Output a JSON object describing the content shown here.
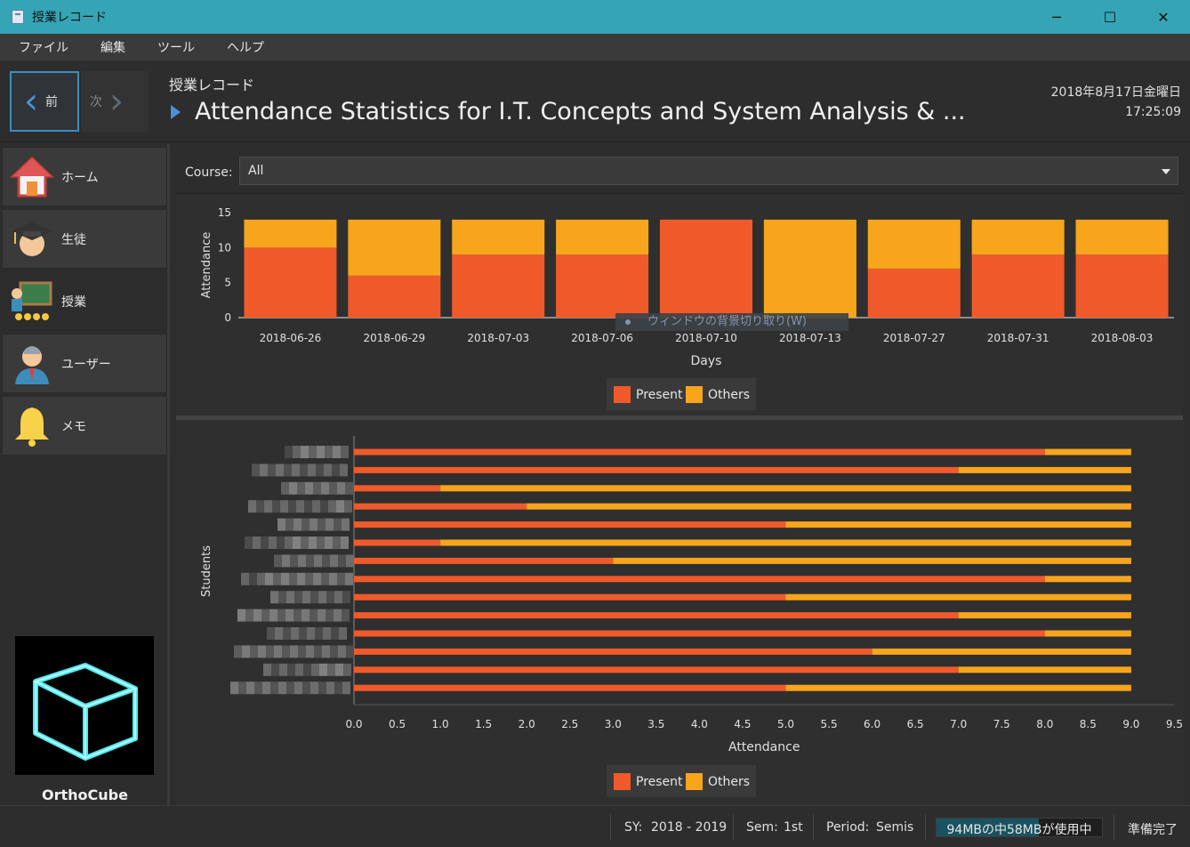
{
  "window": {
    "title": "授業レコード",
    "minimize": "─",
    "maximize": "☐",
    "close": "✕"
  },
  "menu": [
    "ファイル",
    "編集",
    "ツール",
    "ヘルプ"
  ],
  "nav": {
    "prev": "前",
    "next": "次"
  },
  "header": {
    "breadcrumb": "授業レコード",
    "title": "Attendance Statistics for I.T. Concepts and System Analysis & ...",
    "date": "2018年8月17日金曜日",
    "time": "17:25:09"
  },
  "sidebar": {
    "items": [
      {
        "label": "ホーム",
        "icon": "home-icon"
      },
      {
        "label": "生徒",
        "icon": "student-icon"
      },
      {
        "label": "授業",
        "icon": "class-icon"
      },
      {
        "label": "ユーザー",
        "icon": "user-icon"
      },
      {
        "label": "メモ",
        "icon": "bell-icon"
      }
    ],
    "logo_name": "OrthoCube"
  },
  "course": {
    "label": "Course:",
    "value": "All"
  },
  "tooltip": "ウィンドウの背景切り取り(W)",
  "colors": {
    "present": "#f05a2a",
    "others": "#f7a51c",
    "accent": "#3c8dbc",
    "titlebar": "#35a5b5"
  },
  "chart_data": [
    {
      "type": "bar",
      "stacked": true,
      "categories": [
        "2018-06-26",
        "2018-06-29",
        "2018-07-03",
        "2018-07-06",
        "2018-07-10",
        "2018-07-13",
        "2018-07-27",
        "2018-07-31",
        "2018-08-03"
      ],
      "series": [
        {
          "name": "Present",
          "values": [
            10,
            6,
            9,
            9,
            14,
            0,
            7,
            9,
            9
          ]
        },
        {
          "name": "Others",
          "values": [
            4,
            8,
            5,
            5,
            0,
            14,
            7,
            5,
            5
          ]
        }
      ],
      "xlabel": "Days",
      "ylabel": "Attendance",
      "ylim": [
        0,
        15
      ],
      "yticks": [
        "0",
        "5",
        "10",
        "15"
      ],
      "legend": "bottom-center"
    },
    {
      "type": "bar",
      "orientation": "horizontal",
      "stacked": true,
      "series": [
        {
          "name": "Present",
          "values": [
            8,
            7,
            1,
            2,
            5,
            1,
            3,
            8,
            5,
            7,
            8,
            6,
            7,
            5
          ]
        },
        {
          "name": "Others",
          "values": [
            1,
            2,
            8,
            7,
            4,
            8,
            6,
            1,
            4,
            2,
            1,
            3,
            2,
            4
          ]
        }
      ],
      "xlabel": "Attendance",
      "ylabel": "Students",
      "xlim": [
        0,
        9.5
      ],
      "xticks": [
        "0.0",
        "0.5",
        "1.0",
        "1.5",
        "2.0",
        "2.5",
        "3.0",
        "3.5",
        "4.0",
        "4.5",
        "5.0",
        "5.5",
        "6.0",
        "6.5",
        "7.0",
        "7.5",
        "8.0",
        "8.5",
        "9.0",
        "9.5"
      ],
      "legend": "bottom-center"
    }
  ],
  "status": {
    "sy_label": "SY:",
    "sy_value": "2018 - 2019",
    "sem_label": "Sem:",
    "sem_value": "1st",
    "period_label": "Period:",
    "period_value": "Semis",
    "memory": "94MBの中58MBが使用中",
    "memory_used_fraction": 0.617,
    "ready": "準備完了"
  }
}
